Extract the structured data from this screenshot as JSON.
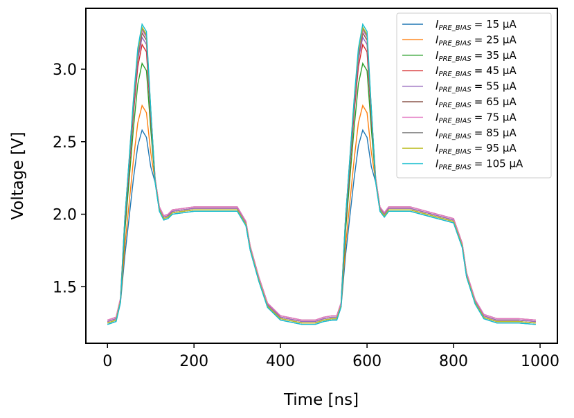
{
  "chart_data": {
    "type": "line",
    "title": "",
    "xlabel": "Time [ns]",
    "ylabel": "Voltage [V]",
    "xlim": [
      -50,
      1040
    ],
    "ylim": [
      1.11,
      3.42
    ],
    "xticks": [
      0,
      200,
      400,
      600,
      800,
      1000
    ],
    "yticks": [
      1.5,
      2.0,
      2.5,
      3.0
    ],
    "xtick_labels": [
      "0",
      "200",
      "400",
      "600",
      "800",
      "1000"
    ],
    "ytick_labels": [
      "1.5",
      "2.0",
      "2.5",
      "3.0"
    ],
    "grid": false,
    "legend_position": "top-right",
    "legend_symbol": "I",
    "legend_subscript": "PRE_BIAS",
    "x": [
      0,
      20,
      30,
      40,
      50,
      60,
      70,
      80,
      90,
      100,
      110,
      120,
      130,
      140,
      150,
      200,
      300,
      320,
      330,
      350,
      370,
      400,
      450,
      480,
      500,
      520,
      530,
      540,
      550,
      560,
      570,
      580,
      590,
      600,
      610,
      620,
      630,
      640,
      650,
      700,
      800,
      820,
      830,
      850,
      870,
      900,
      950,
      990
    ],
    "series": [
      {
        "name": "= 15 μA",
        "color": "#1f77b4",
        "peak": 2.58,
        "plateau": 2.02,
        "low": 1.24
      },
      {
        "name": "= 25 μA",
        "color": "#ff7f0e",
        "peak": 2.75,
        "plateau": 2.03,
        "low": 1.25
      },
      {
        "name": "= 35 μA",
        "color": "#2ca02c",
        "peak": 3.04,
        "plateau": 2.03,
        "low": 1.25
      },
      {
        "name": "= 45 μA",
        "color": "#d62728",
        "peak": 3.17,
        "plateau": 2.04,
        "low": 1.26
      },
      {
        "name": "= 55 μA",
        "color": "#9467bd",
        "peak": 3.22,
        "plateau": 2.04,
        "low": 1.26
      },
      {
        "name": "= 65 μA",
        "color": "#8c564b",
        "peak": 3.25,
        "plateau": 2.05,
        "low": 1.27
      },
      {
        "name": "= 75 μA",
        "color": "#e377c2",
        "peak": 3.27,
        "plateau": 2.05,
        "low": 1.27
      },
      {
        "name": "= 85 μA",
        "color": "#7f7f7f",
        "peak": 3.28,
        "plateau": 2.03,
        "low": 1.25
      },
      {
        "name": "= 95 μA",
        "color": "#bcbd22",
        "peak": 3.29,
        "plateau": 2.03,
        "low": 1.25
      },
      {
        "name": "= 105 μA",
        "color": "#17becf",
        "peak": 3.31,
        "plateau": 2.02,
        "low": 1.24
      }
    ]
  }
}
